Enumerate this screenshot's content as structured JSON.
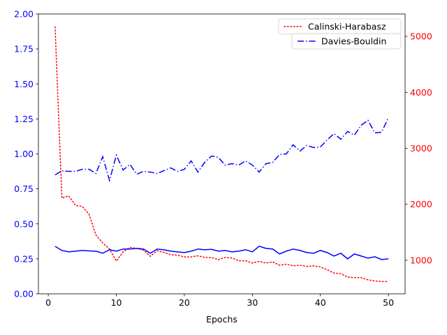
{
  "chart_data": {
    "type": "line",
    "xlabel": "Epochs",
    "x": [
      1,
      2,
      3,
      4,
      5,
      6,
      7,
      8,
      9,
      10,
      11,
      12,
      13,
      14,
      15,
      16,
      17,
      18,
      19,
      20,
      21,
      22,
      23,
      24,
      25,
      26,
      27,
      28,
      29,
      30,
      31,
      32,
      33,
      34,
      35,
      36,
      37,
      38,
      39,
      40,
      41,
      42,
      43,
      44,
      45,
      46,
      47,
      48,
      49,
      50
    ],
    "xlim": [
      -1.45,
      52.45
    ],
    "xticks": [
      0,
      10,
      20,
      30,
      40,
      50
    ],
    "left_axis": {
      "color": "#0000ff",
      "ylim": [
        0,
        2.0
      ],
      "ticks": [
        0.0,
        0.25,
        0.5,
        0.75,
        1.0,
        1.25,
        1.5,
        1.75,
        2.0
      ],
      "tick_labels": [
        "0.00",
        "0.25",
        "0.50",
        "0.75",
        "1.00",
        "1.25",
        "1.50",
        "1.75",
        "2.00"
      ]
    },
    "right_axis": {
      "color": "#ff0000",
      "ylim": [
        400,
        5400
      ],
      "ticks": [
        1000,
        2000,
        3000,
        4000,
        5000
      ],
      "tick_labels": [
        "1000",
        "2000",
        "3000",
        "4000",
        "5000"
      ]
    },
    "series": [
      {
        "name": "Calinski-Harabasz",
        "axis": "right",
        "color": "#ff0000",
        "style": "dotted",
        "values": [
          5170,
          2110,
          2150,
          1980,
          1960,
          1820,
          1450,
          1310,
          1200,
          985,
          1150,
          1230,
          1210,
          1180,
          1070,
          1170,
          1140,
          1100,
          1090,
          1060,
          1060,
          1080,
          1050,
          1050,
          1010,
          1050,
          1040,
          990,
          990,
          950,
          980,
          950,
          970,
          910,
          930,
          900,
          910,
          890,
          900,
          880,
          830,
          770,
          760,
          700,
          690,
          690,
          650,
          630,
          620,
          620
        ]
      },
      {
        "name": "Davies-Bouldin",
        "axis": "left",
        "color": "#0000ff",
        "style": "dashdot",
        "values": [
          0.85,
          0.88,
          0.875,
          0.875,
          0.89,
          0.89,
          0.86,
          0.98,
          0.81,
          0.99,
          0.885,
          0.925,
          0.855,
          0.875,
          0.87,
          0.86,
          0.88,
          0.9,
          0.875,
          0.89,
          0.95,
          0.87,
          0.94,
          0.985,
          0.975,
          0.92,
          0.93,
          0.92,
          0.95,
          0.92,
          0.87,
          0.93,
          0.94,
          0.995,
          1.0,
          1.065,
          1.02,
          1.06,
          1.045,
          1.05,
          1.1,
          1.145,
          1.105,
          1.16,
          1.135,
          1.205,
          1.24,
          1.15,
          1.155,
          1.26
        ]
      },
      {
        "name": "",
        "axis": "left",
        "color": "#0000ff",
        "style": "solid",
        "values": [
          0.34,
          0.31,
          0.3,
          0.305,
          0.31,
          0.307,
          0.305,
          0.29,
          0.315,
          0.305,
          0.32,
          0.32,
          0.325,
          0.32,
          0.29,
          0.32,
          0.315,
          0.305,
          0.3,
          0.295,
          0.305,
          0.32,
          0.315,
          0.318,
          0.305,
          0.31,
          0.3,
          0.305,
          0.315,
          0.3,
          0.34,
          0.325,
          0.32,
          0.285,
          0.305,
          0.32,
          0.31,
          0.295,
          0.29,
          0.31,
          0.295,
          0.27,
          0.29,
          0.25,
          0.285,
          0.27,
          0.255,
          0.265,
          0.245,
          0.25
        ]
      }
    ],
    "legend": {
      "placement": "top-right"
    }
  }
}
